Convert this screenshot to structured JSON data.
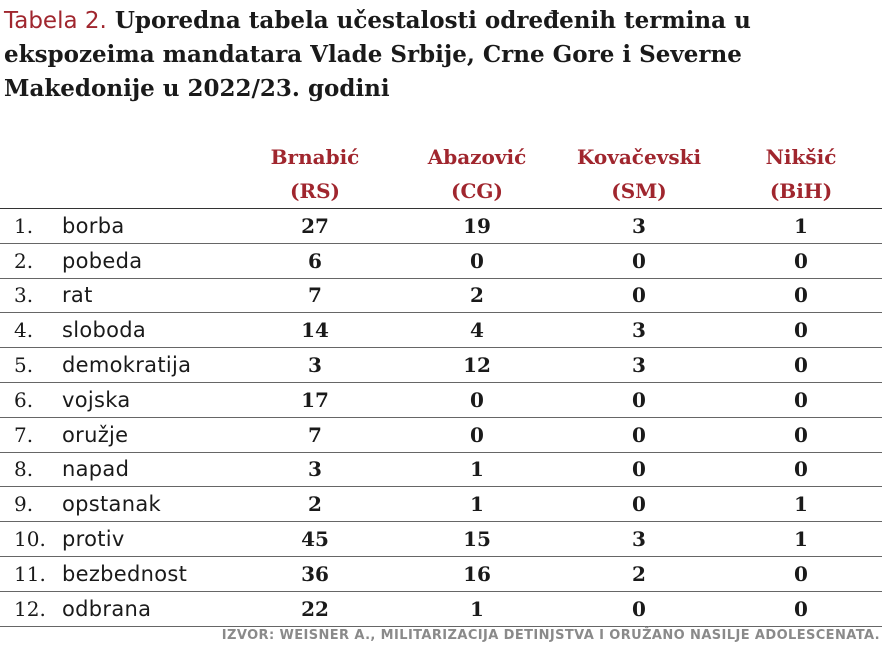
{
  "title": {
    "label": "Tabela 2.",
    "text": "Uporedna tabela učestalosti određenih termina u ekspozeima mandatara Vlade Srbije, Crne Gore i Severne Makedonije u 2022/23. godini"
  },
  "columns": [
    {
      "name": "Brnabić",
      "code": "(RS)"
    },
    {
      "name": "Abazović",
      "code": "(CG)"
    },
    {
      "name": "Kovačevski",
      "code": "(SM)"
    },
    {
      "name": "Nikšić",
      "code": "(BiH)"
    }
  ],
  "rows": [
    {
      "num": "1.",
      "term": "borba",
      "values": [
        "27",
        "19",
        "3",
        "1"
      ]
    },
    {
      "num": "2.",
      "term": "pobeda",
      "values": [
        "6",
        "0",
        "0",
        "0"
      ]
    },
    {
      "num": "3.",
      "term": "rat",
      "values": [
        "7",
        "2",
        "0",
        "0"
      ]
    },
    {
      "num": "4.",
      "term": "sloboda",
      "values": [
        "14",
        "4",
        "3",
        "0"
      ]
    },
    {
      "num": "5.",
      "term": "demokratija",
      "values": [
        "3",
        "12",
        "3",
        "0"
      ]
    },
    {
      "num": "6.",
      "term": "vojska",
      "values": [
        "17",
        "0",
        "0",
        "0"
      ]
    },
    {
      "num": "7.",
      "term": "oružje",
      "values": [
        "7",
        "0",
        "0",
        "0"
      ]
    },
    {
      "num": "8.",
      "term": "napad",
      "values": [
        "3",
        "1",
        "0",
        "0"
      ]
    },
    {
      "num": "9.",
      "term": "opstanak",
      "values": [
        "2",
        "1",
        "0",
        "1"
      ]
    },
    {
      "num": "10.",
      "term": "protiv",
      "values": [
        "45",
        "15",
        "3",
        "1"
      ]
    },
    {
      "num": "11.",
      "term": "bezbednost",
      "values": [
        "36",
        "16",
        "2",
        "0"
      ]
    },
    {
      "num": "12.",
      "term": "odbrana",
      "values": [
        "22",
        "1",
        "0",
        "0"
      ]
    }
  ],
  "source": "IZVOR: WEISNER A., MILITARIZACIJA DETINJSTVA I ORUŽANO NASILJE ADOLESCENATA.",
  "colors": {
    "accent": "#a0262e",
    "text": "#1a1a1a",
    "source": "#8a8a8a"
  }
}
